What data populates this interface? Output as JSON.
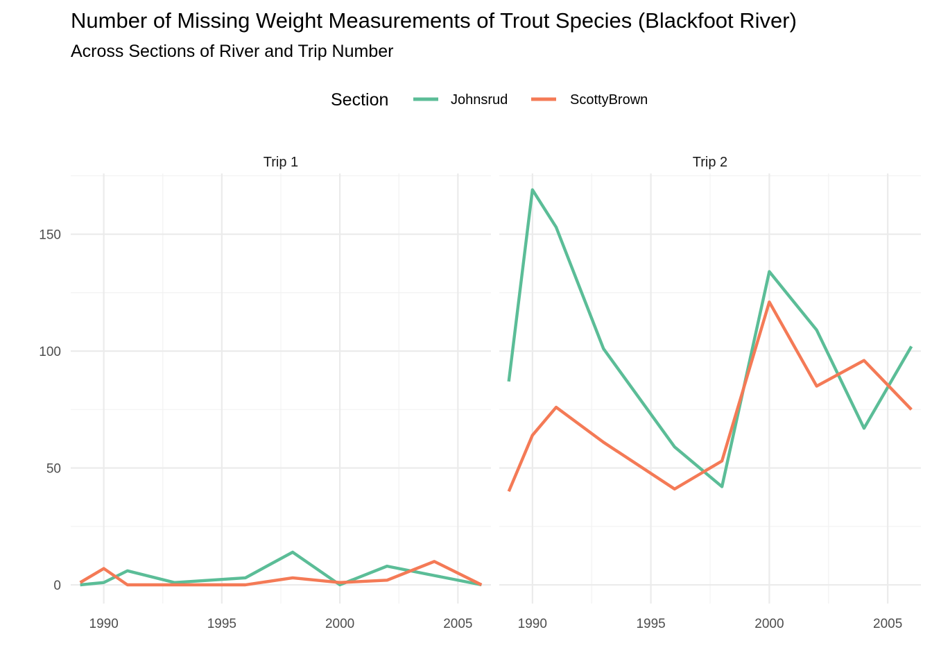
{
  "chart_data": {
    "type": "line",
    "title": "Number of Missing Weight Measurements of Trout Species (Blackfoot River)",
    "subtitle": "Across Sections of River and Trip Number",
    "xlabel": "",
    "ylabel": "",
    "legend": {
      "title": "Section",
      "placement": "top",
      "entries": [
        {
          "name": "Johnsrud",
          "color": "#5bbd97"
        },
        {
          "name": "ScottyBrown",
          "color": "#f47a56"
        }
      ]
    },
    "xlim": [
      1988.6,
      2006.4
    ],
    "ylim": [
      -8,
      176
    ],
    "x_ticks": [
      "1990",
      "1995",
      "2000",
      "2005"
    ],
    "y_ticks": [
      "0",
      "50",
      "100",
      "150"
    ],
    "grid": true,
    "panels": [
      {
        "label": "Trip 1",
        "series": [
          {
            "name": "Johnsrud",
            "x": [
              1989,
              1990,
              1991,
              1993,
              1996,
              1998,
              2000,
              2002,
              2004,
              2006
            ],
            "values": [
              0,
              1,
              6,
              1,
              3,
              14,
              0,
              8,
              4,
              0
            ]
          },
          {
            "name": "ScottyBrown",
            "x": [
              1989,
              1990,
              1991,
              1993,
              1996,
              1998,
              2000,
              2002,
              2004,
              2006
            ],
            "values": [
              1,
              7,
              0,
              0,
              0,
              3,
              1,
              2,
              10,
              0
            ]
          }
        ]
      },
      {
        "label": "Trip 2",
        "series": [
          {
            "name": "Johnsrud",
            "x": [
              1989,
              1990,
              1991,
              1993,
              1996,
              1998,
              2000,
              2002,
              2004,
              2006
            ],
            "values": [
              87,
              169,
              153,
              101,
              59,
              42,
              134,
              109,
              67,
              102
            ]
          },
          {
            "name": "ScottyBrown",
            "x": [
              1989,
              1990,
              1991,
              1993,
              1996,
              1998,
              2000,
              2002,
              2004,
              2006
            ],
            "values": [
              40,
              64,
              76,
              61,
              41,
              53,
              121,
              85,
              96,
              75
            ]
          }
        ]
      }
    ]
  }
}
